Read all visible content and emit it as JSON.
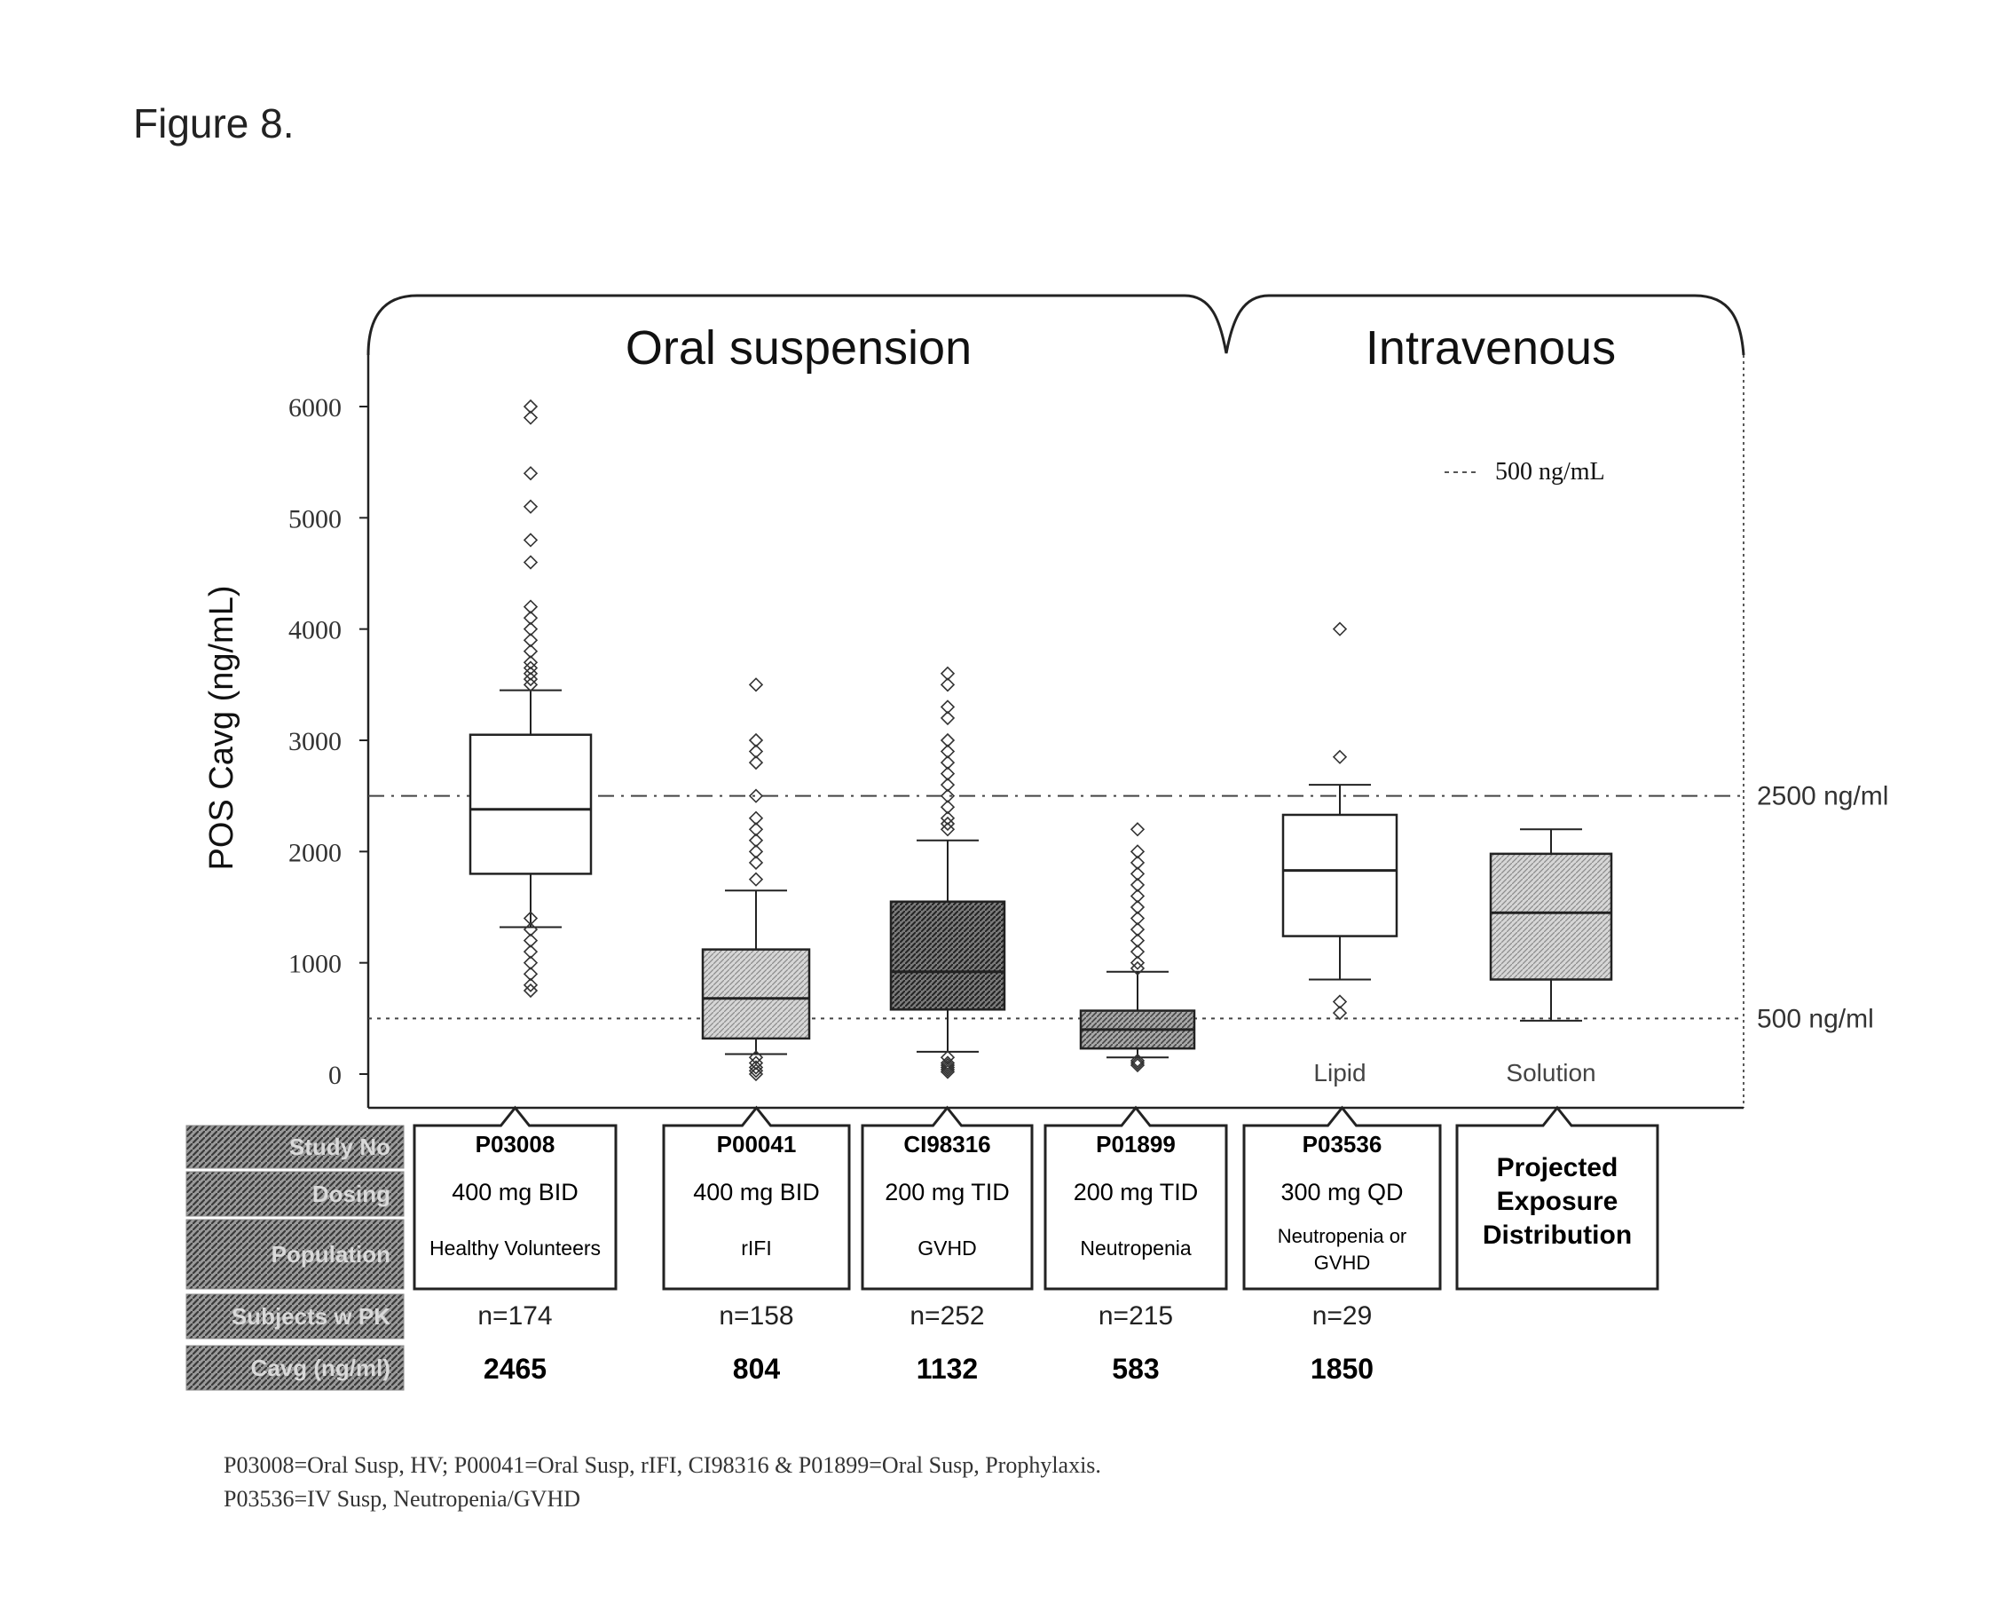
{
  "figure_label": "Figure 8.",
  "groups": [
    {
      "label": "Oral suspension"
    },
    {
      "label": "Intravenous"
    }
  ],
  "row_headers": [
    "Study No",
    "Dosing",
    "Population",
    "Subjects w PK",
    "Cavg (ng/ml)"
  ],
  "legend": {
    "label": "500 ng/mL"
  },
  "reference_lines": [
    {
      "value": 2500,
      "label": "2500 ng/ml"
    },
    {
      "value": 500,
      "label": "500 ng/ml"
    }
  ],
  "footnote": [
    "P03008=Oral Susp, HV; P00041=Oral Susp, rIFI, CI98316 & P01899=Oral Susp, Prophylaxis.",
    "P03536=IV Susp, Neutropenia/GVHD"
  ],
  "colors": {
    "white_box": "#ffffff",
    "light_hatch": "#c4c4c4",
    "dark_hatch": "#6e6e6e",
    "medium_hatch": "#9a9a9a",
    "line": "#222222"
  },
  "chart_data": {
    "type": "box",
    "ylabel": "POS Cavg (ng/mL)",
    "ylim": [
      0,
      6000
    ],
    "yticks": [
      0,
      1000,
      2000,
      3000,
      4000,
      5000,
      6000
    ],
    "ytick_labels": [
      "0",
      "1000",
      "2000",
      "3000",
      "4000",
      "5000",
      "6000"
    ],
    "grid": false,
    "boxes": [
      {
        "study": "P03008",
        "dosing": "400 mg BID",
        "population": "Healthy Volunteers",
        "n": "n=174",
        "cavg": "2465",
        "sublabel": "",
        "fill": "white",
        "q1": 1800,
        "median": 2380,
        "q3": 3050,
        "whisker_low": 1320,
        "whisker_high": 3450,
        "outliers": [
          750,
          800,
          900,
          1000,
          1100,
          1200,
          1300,
          1400,
          3500,
          3550,
          3600,
          3650,
          3700,
          3800,
          3900,
          4000,
          4100,
          4200,
          4600,
          4800,
          5100,
          5400,
          5900,
          6000
        ]
      },
      {
        "study": "P00041",
        "dosing": "400 mg BID",
        "population": "rIFI",
        "n": "n=158",
        "cavg": "804",
        "sublabel": "",
        "fill": "light",
        "q1": 320,
        "median": 680,
        "q3": 1120,
        "whisker_low": 180,
        "whisker_high": 1650,
        "outliers": [
          0,
          30,
          60,
          100,
          150,
          1750,
          1900,
          2000,
          2100,
          2200,
          2300,
          2500,
          2800,
          2900,
          3000,
          3500
        ]
      },
      {
        "study": "CI98316",
        "dosing": "200 mg TID",
        "population": "GVHD",
        "n": "n=252",
        "cavg": "1132",
        "sublabel": "",
        "fill": "dark",
        "q1": 580,
        "median": 920,
        "q3": 1550,
        "whisker_low": 200,
        "whisker_high": 2100,
        "outliers": [
          20,
          40,
          60,
          80,
          100,
          150,
          2200,
          2250,
          2300,
          2400,
          2500,
          2600,
          2700,
          2800,
          2900,
          3000,
          3200,
          3300,
          3500,
          3600
        ]
      },
      {
        "study": "P01899",
        "dosing": "200 mg TID",
        "population": "Neutropenia",
        "n": "n=215",
        "cavg": "583",
        "sublabel": "",
        "fill": "medium",
        "q1": 230,
        "median": 400,
        "q3": 570,
        "whisker_low": 150,
        "whisker_high": 920,
        "outliers": [
          80,
          100,
          120,
          950,
          1000,
          1100,
          1200,
          1300,
          1400,
          1500,
          1600,
          1700,
          1800,
          1900,
          2000,
          2200
        ]
      },
      {
        "study": "P03536",
        "dosing": "300 mg QD",
        "population": "Neutropenia or GVHD",
        "n": "n=29",
        "cavg": "1850",
        "sublabel": "Lipid",
        "fill": "white",
        "q1": 1240,
        "median": 1830,
        "q3": 2330,
        "whisker_low": 850,
        "whisker_high": 2600,
        "outliers": [
          550,
          650,
          2850,
          4000
        ]
      },
      {
        "study": "Projected Exposure Distribution",
        "dosing": "",
        "population": "",
        "n": "",
        "cavg": "",
        "sublabel": "Solution",
        "fill": "light",
        "q1": 850,
        "median": 1450,
        "q3": 1980,
        "whisker_low": 480,
        "whisker_high": 2200,
        "outliers": []
      }
    ]
  }
}
